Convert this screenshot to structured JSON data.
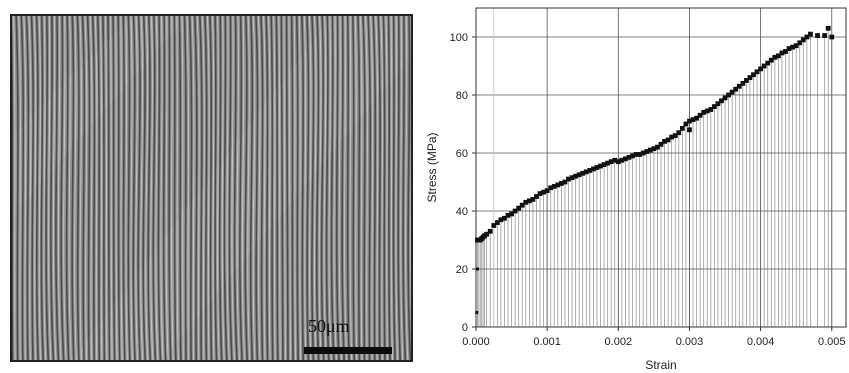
{
  "figure": {
    "scale_bar_label": "50μm"
  },
  "chart_data": {
    "type": "scatter",
    "title": "",
    "xlabel": "Strain",
    "ylabel": "Stress (MPa)",
    "xlim": [
      0,
      0.0052
    ],
    "ylim": [
      0,
      110
    ],
    "grid": true,
    "drop_lines": true,
    "xticks": [
      "0.000",
      "0.001",
      "0.002",
      "0.003",
      "0.004",
      "0.005"
    ],
    "yticks": [
      "0",
      "20",
      "40",
      "60",
      "80",
      "100"
    ],
    "x": [
      2e-05,
      4e-05,
      6e-05,
      8e-05,
      0.0001,
      0.00012,
      0.00015,
      0.0002,
      0.00025,
      0.0003,
      0.00035,
      0.0004,
      0.00045,
      0.0005,
      0.00055,
      0.0006,
      0.00065,
      0.0007,
      0.00075,
      0.0008,
      0.00085,
      0.0009,
      0.00095,
      0.001,
      0.00105,
      0.0011,
      0.00115,
      0.0012,
      0.00125,
      0.0013,
      0.00135,
      0.0014,
      0.00145,
      0.0015,
      0.00155,
      0.0016,
      0.00165,
      0.0017,
      0.00175,
      0.0018,
      0.00185,
      0.0019,
      0.00195,
      0.002,
      0.00205,
      0.0021,
      0.00215,
      0.0022,
      0.00225,
      0.0023,
      0.00235,
      0.0024,
      0.00245,
      0.0025,
      0.00255,
      0.0026,
      0.00265,
      0.0027,
      0.00275,
      0.0028,
      0.00285,
      0.0029,
      0.00295,
      0.003,
      0.003,
      0.00305,
      0.0031,
      0.00315,
      0.0032,
      0.00325,
      0.0033,
      0.00335,
      0.0034,
      0.00345,
      0.0035,
      0.00355,
      0.0036,
      0.00365,
      0.0037,
      0.00375,
      0.0038,
      0.00385,
      0.0039,
      0.00395,
      0.004,
      0.00405,
      0.0041,
      0.00415,
      0.0042,
      0.00425,
      0.0043,
      0.00435,
      0.0044,
      0.00445,
      0.0045,
      0.00455,
      0.0046,
      0.00465,
      0.0047,
      0.0048,
      0.0049,
      0.00495,
      0.005
    ],
    "y": [
      30,
      30,
      30,
      30.5,
      31,
      31.5,
      32,
      33,
      35,
      36,
      37,
      37.5,
      38.5,
      39,
      40,
      41,
      42,
      43,
      43.5,
      44,
      45,
      46,
      46.5,
      47,
      48,
      48.5,
      49,
      49.5,
      50,
      51,
      51.5,
      52,
      52.5,
      53,
      53.5,
      54,
      54.5,
      55,
      55.5,
      56,
      56.5,
      57,
      57.5,
      57,
      57.5,
      58,
      58.5,
      59,
      59.5,
      59.5,
      60,
      60.5,
      61,
      61.5,
      62,
      63,
      64,
      64.5,
      65.5,
      66,
      67,
      68.5,
      70,
      68,
      71,
      71.5,
      72,
      73,
      74,
      74.5,
      75,
      76,
      77,
      78,
      79,
      80,
      81,
      82,
      83,
      84,
      85,
      86,
      87,
      88,
      89,
      90,
      91,
      92,
      93,
      93.5,
      94.5,
      95,
      96,
      96.5,
      97,
      98,
      99,
      100,
      101,
      100.5,
      100.5,
      103,
      100
    ]
  }
}
